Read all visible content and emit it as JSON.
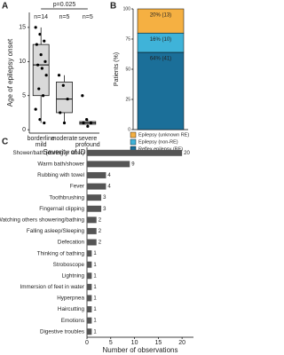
{
  "chart_data": [
    {
      "type": "box",
      "panel_label": "A",
      "ylabel": "Age of epilepsy onset",
      "xlabel": "Severity of ID",
      "annotation": "p=0.025",
      "categories": [
        [
          "borderline",
          "mild"
        ],
        [
          "moderate"
        ],
        [
          "severe",
          "profound"
        ]
      ],
      "n_labels": [
        "n=14",
        "n=5",
        "n=5"
      ],
      "box_color": "#d9d9d9",
      "boxes": [
        {
          "whisker_low": 1,
          "q1": 5,
          "median": 9.5,
          "q3": 12.5,
          "whisker_high": 15,
          "points": [
            15,
            14,
            13,
            12.5,
            11,
            10,
            9.5,
            9,
            8,
            6,
            5,
            3,
            1.5,
            1
          ]
        },
        {
          "whisker_low": 1,
          "q1": 2.5,
          "median": 4.5,
          "q3": 7,
          "whisker_high": 8,
          "points": [
            8,
            6.5,
            4.5,
            2.5,
            1
          ]
        },
        {
          "whisker_low": 0.5,
          "q1": 0.8,
          "median": 1,
          "q3": 1.2,
          "whisker_high": 1.5,
          "points": [
            5,
            1.5,
            1,
            1,
            0.5
          ]
        }
      ],
      "ylim": [
        -0.5,
        17.2
      ],
      "yticks": [
        0,
        5,
        10,
        15
      ]
    },
    {
      "type": "stackedbar",
      "panel_label": "B",
      "ylabel": "Patients (%)",
      "ylim": [
        0,
        100
      ],
      "yticks": [
        0,
        25,
        50,
        75,
        100
      ],
      "series": [
        {
          "name": "Reflex epilepsy (RE)",
          "color": "#1b6f99",
          "values": [
            64
          ],
          "value_labels": [
            "64% (41)"
          ]
        },
        {
          "name": "Epilepsy (non-RE)",
          "color": "#3fb3d9",
          "values": [
            16
          ],
          "value_labels": [
            "16% (10)"
          ]
        },
        {
          "name": "Epilepsy (unknown RE)",
          "color": "#f5b042",
          "values": [
            20
          ],
          "value_labels": [
            "20% (13)"
          ]
        }
      ]
    },
    {
      "type": "hbar",
      "panel_label": "C",
      "xlabel": "Number of observations",
      "color": "#555555",
      "categories": [
        "Shower/bath (during or after)",
        "Warm bath/shower",
        "Rubbing with towel",
        "Fever",
        "Toothbrushing",
        "Fingernail clipping",
        "Watching others showering/bathing",
        "Falling asleep/Sleeping",
        "Defecation",
        "Thinking of bathing",
        "Stroboscope",
        "Lightning",
        "Immersion of feet in water",
        "Hyperpnea",
        "Haircutting",
        "Emotions",
        "Digestive troubles"
      ],
      "values": [
        20,
        9,
        4,
        4,
        3,
        3,
        2,
        2,
        2,
        1,
        1,
        1,
        1,
        1,
        1,
        1,
        1
      ],
      "xlim": [
        0,
        22.4
      ],
      "xticks": [
        0,
        5,
        10,
        15,
        20
      ]
    }
  ]
}
